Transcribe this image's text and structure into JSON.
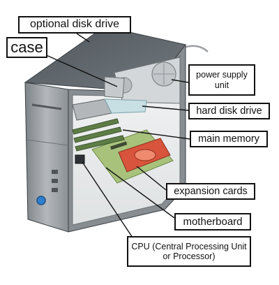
{
  "labels": {
    "optional_disk_drive": "optional disk drive",
    "case": "case",
    "power_supply_unit": "power supply unit",
    "hard_disk_drive": "hard disk drive",
    "main_memory": "main memory",
    "expansion_cards": "expansion cards",
    "motherboard": "motherboard",
    "cpu": "CPU (Central Processing Unit or Processor)"
  },
  "colors": {
    "case_body": "#8c9296",
    "case_front": "#a9adb0",
    "case_top": "#5e6468",
    "interior": "#e8eaeb",
    "motherboard": "#a8c27c",
    "expansion_card": "#d9543c",
    "power_led": "#2f7fd0"
  }
}
